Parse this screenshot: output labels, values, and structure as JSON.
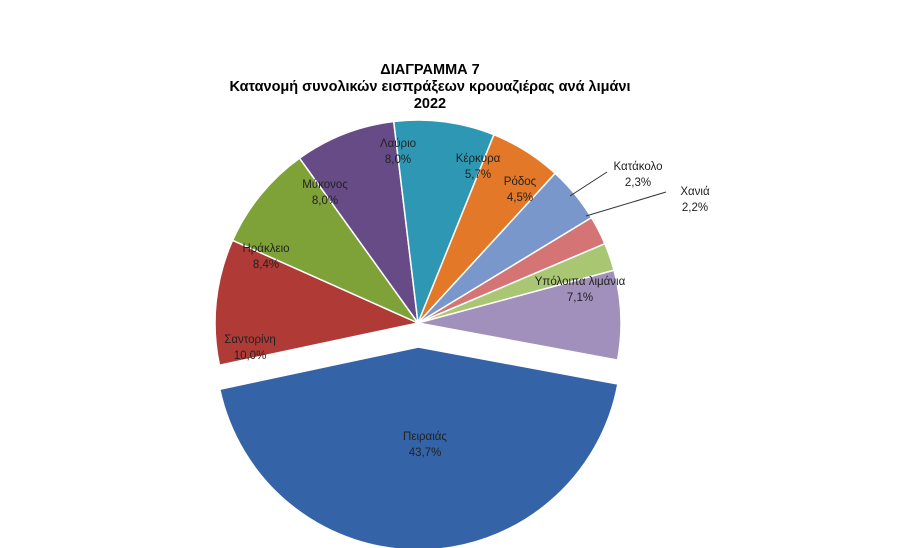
{
  "colors": {
    "Πειραιάς": "#3563A8",
    "Σαντορίνη": "#B03A36",
    "Ηράκλειο": "#7EA237",
    "Μύκονος": "#674B86",
    "Λαύριο": "#2E98B4",
    "Κέρκυρα": "#E27828",
    "Ρόδος": "#7A97CC",
    "Κατάκολο": "#D57475",
    "Χανιά": "#A9C672",
    "Υπόλοιπα λιμάνια": "#A190BB"
  },
  "chart_data": {
    "type": "pie",
    "title": "ΔΙΑΓΡΑΜΜΑ 7",
    "subtitle": "Κατανομή συνολικών εισπράξεων κρουαζιέρας ανά λιμάνι",
    "year": "2022",
    "slices": [
      {
        "label": "Πειραιάς",
        "value": 43.7,
        "display": "43,7%",
        "exploded": true
      },
      {
        "label": "Σαντορίνη",
        "value": 10.0,
        "display": "10,0%"
      },
      {
        "label": "Ηράκλειο",
        "value": 8.4,
        "display": "8,4%"
      },
      {
        "label": "Μύκονος",
        "value": 8.0,
        "display": "8,0%"
      },
      {
        "label": "Λαύριο",
        "value": 8.0,
        "display": "8,0%"
      },
      {
        "label": "Κέρκυρα",
        "value": 5.7,
        "display": "5,7%"
      },
      {
        "label": "Ρόδος",
        "value": 4.5,
        "display": "4,5%"
      },
      {
        "label": "Κατάκολο",
        "value": 2.3,
        "display": "2,3%"
      },
      {
        "label": "Χανιά",
        "value": 2.2,
        "display": "2,2%"
      },
      {
        "label": "Υπόλοιπα λιμάνια",
        "value": 7.1,
        "display": "7,1%"
      }
    ]
  }
}
